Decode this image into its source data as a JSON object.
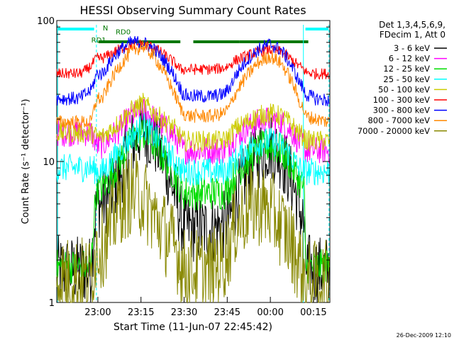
{
  "chart_data": {
    "type": "line",
    "title": "HESSI Observing Summary Count Rates",
    "xlabel": "Start Time (11-Jun-07 22:45:42)",
    "ylabel": "Count Rate (s⁻¹ detector⁻¹)",
    "yscale": "log",
    "ylim": [
      1,
      100
    ],
    "xlim": [
      0,
      95
    ],
    "x_units": "minutes after 22:45:42",
    "x_ticks": [
      {
        "x": 14.3,
        "label": "23:00"
      },
      {
        "x": 29.3,
        "label": "23:15"
      },
      {
        "x": 44.3,
        "label": "23:30"
      },
      {
        "x": 59.3,
        "label": "23:45"
      },
      {
        "x": 74.3,
        "label": "00:00"
      },
      {
        "x": 89.3,
        "label": "00:15"
      }
    ],
    "y_ticks": [
      {
        "y": 1,
        "label": "1"
      },
      {
        "y": 10,
        "label": "10"
      },
      {
        "y": 100,
        "label": "100"
      }
    ],
    "legend_header": [
      "Det 1,3,4,5,6,9,",
      "FDecim 1, Att 0"
    ],
    "legend_position": "right",
    "series": [
      {
        "name": "3 - 6 keV",
        "color": "#000000",
        "noise": 0.5,
        "x": [
          0,
          4,
          8,
          10,
          12,
          14,
          16,
          19,
          22,
          26,
          30,
          34,
          38,
          41,
          43,
          44,
          46,
          50,
          54,
          58,
          60,
          62,
          66,
          70,
          74,
          78,
          82,
          84,
          86,
          86.5,
          90,
          95
        ],
        "y": [
          1.7,
          1.7,
          1.7,
          1.7,
          1.7,
          5,
          5,
          6,
          8,
          13,
          17,
          14,
          9,
          6,
          4,
          3.5,
          3.4,
          3.3,
          3.3,
          3.5,
          3.8,
          5,
          8,
          11,
          13,
          11,
          7,
          5,
          3.5,
          1.8,
          1.7,
          1.7
        ]
      },
      {
        "name": "6 - 12 keV",
        "color": "#ff00ff",
        "noise": 0.2,
        "x": [
          0,
          4,
          8,
          10,
          12,
          14,
          16,
          19,
          22,
          26,
          30,
          34,
          38,
          41,
          43,
          44,
          46,
          50,
          54,
          58,
          60,
          62,
          66,
          70,
          74,
          78,
          82,
          84,
          86,
          86.5,
          90,
          95
        ],
        "y": [
          16,
          16,
          16,
          16,
          16,
          13,
          13,
          15,
          17,
          21,
          23,
          20,
          17,
          15,
          13,
          12,
          12,
          12,
          12,
          12,
          13,
          15,
          17,
          19,
          20,
          19,
          16,
          14,
          13,
          12,
          12,
          12
        ]
      },
      {
        "name": "12 - 25 keV",
        "color": "#00dd00",
        "noise": 0.25,
        "x": [
          0,
          4,
          8,
          10,
          12,
          14,
          16,
          19,
          22,
          26,
          30,
          34,
          38,
          41,
          43,
          44,
          46,
          50,
          54,
          58,
          60,
          62,
          66,
          70,
          74,
          78,
          82,
          84,
          86,
          86.5,
          90,
          95
        ],
        "y": [
          1.8,
          1.8,
          1.8,
          1.8,
          1.8,
          6.5,
          6.5,
          8,
          10,
          14,
          16,
          13,
          10,
          8,
          6.5,
          6,
          6,
          6,
          6,
          6,
          6.5,
          8,
          10,
          12,
          13,
          12,
          9,
          7.5,
          6.5,
          1.8,
          1.8,
          1.8
        ]
      },
      {
        "name": "25 - 50 keV",
        "color": "#00ffff",
        "noise": 0.2,
        "x": [
          0,
          4,
          8,
          10,
          12,
          14,
          16,
          19,
          22,
          26,
          30,
          34,
          38,
          41,
          43,
          44,
          46,
          50,
          54,
          58,
          60,
          62,
          66,
          70,
          74,
          78,
          82,
          84,
          86,
          86.5,
          90,
          95
        ],
        "y": [
          9,
          9,
          9,
          9,
          9,
          8.5,
          8.5,
          10,
          12,
          15,
          18,
          15,
          12,
          10,
          9,
          8.5,
          8.5,
          8.5,
          8.5,
          8.5,
          9,
          10,
          12,
          13.5,
          14,
          13,
          10.5,
          9,
          8.5,
          8.5,
          8.5,
          8.5
        ]
      },
      {
        "name": "50 - 100 keV",
        "color": "#cccc00",
        "noise": 0.15,
        "x": [
          0,
          4,
          8,
          10,
          12,
          14,
          16,
          19,
          22,
          26,
          30,
          34,
          38,
          41,
          43,
          44,
          46,
          50,
          54,
          58,
          60,
          62,
          66,
          70,
          74,
          78,
          82,
          84,
          86,
          86.5,
          90,
          95
        ],
        "y": [
          16,
          16,
          16,
          16,
          16,
          15,
          15,
          17,
          19,
          23,
          26,
          22,
          19,
          17,
          15,
          14,
          14,
          14,
          14,
          14,
          15,
          17,
          19,
          21,
          22,
          21,
          18,
          16,
          15,
          14,
          14,
          14
        ]
      },
      {
        "name": "100 - 300 keV",
        "color": "#ff0000",
        "noise": 0.08,
        "x": [
          0,
          4,
          8,
          10,
          12,
          14,
          16,
          19,
          22,
          26,
          30,
          34,
          38,
          41,
          43,
          44,
          46,
          50,
          54,
          58,
          60,
          62,
          66,
          70,
          74,
          78,
          82,
          84,
          86,
          86.5,
          90,
          95
        ],
        "y": [
          42,
          42,
          42,
          44,
          48,
          54,
          54,
          58,
          63,
          67,
          68,
          64,
          56,
          50,
          45,
          45,
          45,
          45,
          45,
          46,
          48,
          52,
          56,
          60,
          62,
          60,
          52,
          48,
          45,
          43,
          42,
          42
        ]
      },
      {
        "name": "300 - 800 keV",
        "color": "#0000ff",
        "noise": 0.1,
        "x": [
          0,
          4,
          8,
          10,
          12,
          14,
          16,
          19,
          22,
          26,
          30,
          34,
          38,
          41,
          43,
          44,
          46,
          50,
          54,
          58,
          60,
          62,
          66,
          70,
          74,
          78,
          82,
          84,
          86,
          86.5,
          90,
          95
        ],
        "y": [
          28,
          28,
          28,
          30,
          32,
          42,
          42,
          52,
          62,
          70,
          70,
          62,
          50,
          40,
          33,
          30,
          29,
          29,
          29,
          30,
          33,
          40,
          52,
          62,
          68,
          62,
          46,
          38,
          32,
          30,
          28,
          27
        ]
      },
      {
        "name": "800 - 7000 keV",
        "color": "#ff8800",
        "noise": 0.1,
        "x": [
          0,
          4,
          8,
          10,
          12,
          14,
          16,
          19,
          22,
          26,
          30,
          34,
          38,
          41,
          43,
          44,
          46,
          50,
          54,
          58,
          60,
          62,
          66,
          70,
          74,
          78,
          82,
          84,
          86,
          86.5,
          90,
          95
        ],
        "y": [
          19,
          19,
          19,
          19,
          19,
          28,
          28,
          38,
          48,
          60,
          66,
          55,
          40,
          30,
          24,
          22,
          21,
          21,
          21,
          22,
          24,
          30,
          40,
          50,
          56,
          50,
          36,
          28,
          23,
          21,
          20,
          19
        ]
      },
      {
        "name": "7000 - 20000 keV",
        "color": "#888800",
        "noise": 0.6,
        "x": [
          0,
          4,
          8,
          10,
          12,
          14,
          16,
          19,
          22,
          26,
          30,
          34,
          38,
          41,
          43,
          44,
          46,
          50,
          54,
          58,
          60,
          62,
          66,
          70,
          74,
          78,
          82,
          84,
          86,
          86.5,
          90,
          95
        ],
        "y": [
          1.5,
          1.5,
          1.5,
          1.5,
          1.5,
          2.5,
          2.5,
          3.5,
          5,
          6,
          5.5,
          4,
          3,
          2.5,
          2,
          1.7,
          1.7,
          1.7,
          1.7,
          2,
          2.5,
          3.5,
          4.5,
          5,
          4.5,
          3.5,
          2.5,
          2,
          1.6,
          1.4,
          1.4,
          1.4
        ]
      }
    ],
    "annotations": [
      {
        "label": "N",
        "x": 16,
        "y": 85
      },
      {
        "label": "RD0",
        "x": 20.5,
        "y": 80
      },
      {
        "label": "RD1",
        "x": 12,
        "y": 70
      }
    ]
  },
  "footer": {
    "date_stamp": "26-Dec-2009 12:10"
  }
}
